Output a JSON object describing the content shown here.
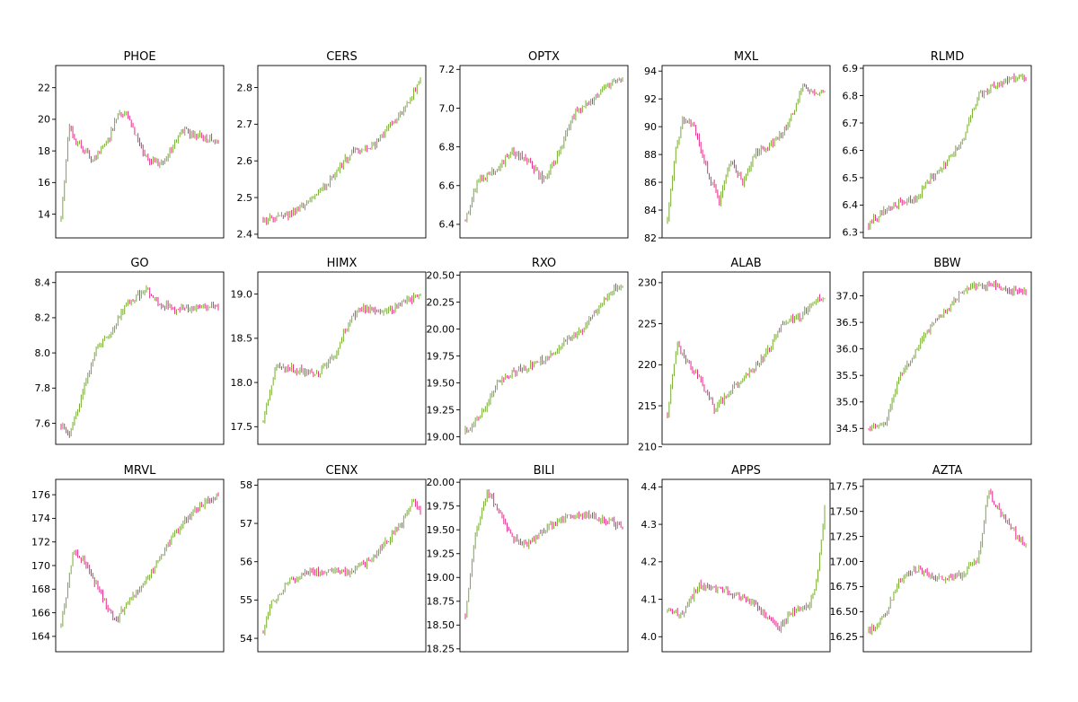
{
  "figure": {
    "colors": {
      "up": "#77ac30",
      "down": "#e7298a",
      "axis": "#000000"
    }
  },
  "chart_data": [
    {
      "type": "candlestick",
      "title": "PHOE",
      "yticks": [
        14,
        16,
        18,
        20,
        22
      ],
      "ylim": [
        12.5,
        23.4
      ],
      "trend": [
        [
          0,
          13.7
        ],
        [
          0.05,
          19.6
        ],
        [
          0.1,
          18.5
        ],
        [
          0.2,
          17.5
        ],
        [
          0.3,
          18.6
        ],
        [
          0.36,
          20.4
        ],
        [
          0.42,
          20.3
        ],
        [
          0.5,
          18.4
        ],
        [
          0.56,
          17.4
        ],
        [
          0.63,
          17.2
        ],
        [
          0.7,
          18.0
        ],
        [
          0.77,
          19.4
        ],
        [
          0.85,
          19.0
        ],
        [
          0.92,
          18.8
        ],
        [
          1.0,
          18.6
        ]
      ]
    },
    {
      "type": "candlestick",
      "title": "CERS",
      "yticks": [
        2.4,
        2.5,
        2.6,
        2.7,
        2.8
      ],
      "ylim": [
        2.39,
        2.86
      ],
      "trend": [
        [
          0,
          2.44
        ],
        [
          0.15,
          2.45
        ],
        [
          0.3,
          2.49
        ],
        [
          0.45,
          2.56
        ],
        [
          0.55,
          2.62
        ],
        [
          0.7,
          2.64
        ],
        [
          0.8,
          2.69
        ],
        [
          0.9,
          2.74
        ],
        [
          0.96,
          2.79
        ],
        [
          1.0,
          2.83
        ]
      ]
    },
    {
      "type": "candlestick",
      "title": "OPTX",
      "yticks": [
        6.4,
        6.6,
        6.8,
        7.0,
        7.2
      ],
      "ylim": [
        6.33,
        7.22
      ],
      "trend": [
        [
          0,
          6.42
        ],
        [
          0.08,
          6.62
        ],
        [
          0.2,
          6.68
        ],
        [
          0.3,
          6.78
        ],
        [
          0.4,
          6.72
        ],
        [
          0.5,
          6.63
        ],
        [
          0.6,
          6.78
        ],
        [
          0.7,
          6.98
        ],
        [
          0.8,
          7.04
        ],
        [
          0.9,
          7.12
        ],
        [
          1.0,
          7.15
        ]
      ]
    },
    {
      "type": "candlestick",
      "title": "MXL",
      "yticks": [
        82,
        84,
        86,
        88,
        90,
        92,
        94
      ],
      "ylim": [
        82,
        94.4
      ],
      "trend": [
        [
          0,
          83.2
        ],
        [
          0.05,
          88.4
        ],
        [
          0.1,
          90.6
        ],
        [
          0.17,
          90.1
        ],
        [
          0.25,
          86.9
        ],
        [
          0.33,
          84.6
        ],
        [
          0.4,
          87.6
        ],
        [
          0.48,
          85.9
        ],
        [
          0.56,
          88.2
        ],
        [
          0.64,
          88.6
        ],
        [
          0.72,
          89.3
        ],
        [
          0.8,
          91.0
        ],
        [
          0.86,
          92.9
        ],
        [
          0.93,
          92.4
        ],
        [
          1.0,
          92.6
        ]
      ]
    },
    {
      "type": "candlestick",
      "title": "RLMD",
      "yticks": [
        6.3,
        6.4,
        6.5,
        6.6,
        6.7,
        6.8,
        6.9
      ],
      "ylim": [
        6.28,
        6.91
      ],
      "trend": [
        [
          0,
          6.33
        ],
        [
          0.1,
          6.38
        ],
        [
          0.2,
          6.41
        ],
        [
          0.3,
          6.42
        ],
        [
          0.4,
          6.5
        ],
        [
          0.5,
          6.56
        ],
        [
          0.6,
          6.64
        ],
        [
          0.7,
          6.8
        ],
        [
          0.8,
          6.84
        ],
        [
          0.9,
          6.86
        ],
        [
          1.0,
          6.87
        ]
      ]
    },
    {
      "type": "candlestick",
      "title": "GO",
      "yticks": [
        7.6,
        7.8,
        8.0,
        8.2,
        8.4
      ],
      "ylim": [
        7.48,
        8.46
      ],
      "trend": [
        [
          0,
          7.58
        ],
        [
          0.05,
          7.53
        ],
        [
          0.12,
          7.72
        ],
        [
          0.22,
          8.02
        ],
        [
          0.32,
          8.12
        ],
        [
          0.42,
          8.28
        ],
        [
          0.55,
          8.36
        ],
        [
          0.62,
          8.28
        ],
        [
          0.72,
          8.25
        ],
        [
          0.85,
          8.26
        ],
        [
          0.95,
          8.27
        ],
        [
          1.0,
          8.25
        ]
      ]
    },
    {
      "type": "candlestick",
      "title": "HIMX",
      "yticks": [
        17.5,
        18.0,
        18.5,
        19.0
      ],
      "ylim": [
        17.3,
        19.25
      ],
      "trend": [
        [
          0,
          17.55
        ],
        [
          0.08,
          18.2
        ],
        [
          0.2,
          18.15
        ],
        [
          0.35,
          18.1
        ],
        [
          0.45,
          18.3
        ],
        [
          0.55,
          18.7
        ],
        [
          0.63,
          18.85
        ],
        [
          0.75,
          18.8
        ],
        [
          0.85,
          18.85
        ],
        [
          1.0,
          19.0
        ]
      ]
    },
    {
      "type": "candlestick",
      "title": "RXO",
      "yticks": [
        19.0,
        19.25,
        19.5,
        19.75,
        20.0,
        20.25,
        20.5
      ],
      "ylim": [
        18.93,
        20.53
      ],
      "trend": [
        [
          0,
          19.05
        ],
        [
          0.1,
          19.2
        ],
        [
          0.2,
          19.5
        ],
        [
          0.3,
          19.6
        ],
        [
          0.45,
          19.68
        ],
        [
          0.55,
          19.76
        ],
        [
          0.65,
          19.9
        ],
        [
          0.75,
          20.0
        ],
        [
          0.85,
          20.2
        ],
        [
          0.95,
          20.38
        ],
        [
          1.0,
          20.4
        ]
      ]
    },
    {
      "type": "candlestick",
      "title": "ALAB",
      "yticks": [
        210,
        215,
        220,
        225,
        230
      ],
      "ylim": [
        210.3,
        231.3
      ],
      "trend": [
        [
          0,
          214
        ],
        [
          0.06,
          222.5
        ],
        [
          0.12,
          220.5
        ],
        [
          0.2,
          218.5
        ],
        [
          0.3,
          214.5
        ],
        [
          0.38,
          216.5
        ],
        [
          0.46,
          218
        ],
        [
          0.55,
          219.5
        ],
        [
          0.65,
          222
        ],
        [
          0.75,
          225.5
        ],
        [
          0.85,
          225.8
        ],
        [
          0.93,
          228
        ],
        [
          1.0,
          227.8
        ]
      ]
    },
    {
      "type": "candlestick",
      "title": "BBW",
      "yticks": [
        34.5,
        35.0,
        35.5,
        36.0,
        36.5,
        37.0
      ],
      "ylim": [
        34.2,
        37.45
      ],
      "trend": [
        [
          0,
          34.5
        ],
        [
          0.1,
          34.55
        ],
        [
          0.2,
          35.5
        ],
        [
          0.3,
          35.95
        ],
        [
          0.4,
          36.45
        ],
        [
          0.5,
          36.75
        ],
        [
          0.6,
          37.1
        ],
        [
          0.7,
          37.2
        ],
        [
          0.8,
          37.2
        ],
        [
          0.9,
          37.1
        ],
        [
          1.0,
          37.05
        ]
      ]
    },
    {
      "type": "candlestick",
      "title": "MRVL",
      "yticks": [
        164,
        166,
        168,
        170,
        172,
        174,
        176
      ],
      "ylim": [
        162.7,
        177.3
      ],
      "trend": [
        [
          0,
          164.8
        ],
        [
          0.08,
          171.5
        ],
        [
          0.15,
          170.2
        ],
        [
          0.22,
          168.5
        ],
        [
          0.3,
          166.2
        ],
        [
          0.35,
          165.2
        ],
        [
          0.42,
          167.0
        ],
        [
          0.5,
          168.0
        ],
        [
          0.6,
          170.0
        ],
        [
          0.7,
          172.3
        ],
        [
          0.8,
          174.0
        ],
        [
          0.9,
          175.2
        ],
        [
          1.0,
          176.0
        ]
      ]
    },
    {
      "type": "candlestick",
      "title": "CENX",
      "yticks": [
        54,
        55,
        56,
        57,
        58
      ],
      "ylim": [
        53.65,
        58.15
      ],
      "trend": [
        [
          0,
          54.2
        ],
        [
          0.05,
          54.9
        ],
        [
          0.15,
          55.4
        ],
        [
          0.25,
          55.7
        ],
        [
          0.4,
          55.75
        ],
        [
          0.55,
          55.7
        ],
        [
          0.7,
          56.1
        ],
        [
          0.8,
          56.6
        ],
        [
          0.88,
          57.0
        ],
        [
          0.95,
          57.6
        ],
        [
          1.0,
          57.3
        ]
      ]
    },
    {
      "type": "candlestick",
      "title": "BILI",
      "yticks": [
        18.25,
        18.5,
        18.75,
        19.0,
        19.25,
        19.5,
        19.75,
        20.0
      ],
      "ylim": [
        18.22,
        20.03
      ],
      "trend": [
        [
          0,
          18.6
        ],
        [
          0.06,
          19.4
        ],
        [
          0.14,
          19.9
        ],
        [
          0.2,
          19.75
        ],
        [
          0.3,
          19.4
        ],
        [
          0.4,
          19.35
        ],
        [
          0.5,
          19.5
        ],
        [
          0.6,
          19.6
        ],
        [
          0.7,
          19.65
        ],
        [
          0.8,
          19.65
        ],
        [
          0.9,
          19.6
        ],
        [
          1.0,
          19.53
        ]
      ]
    },
    {
      "type": "candlestick",
      "title": "APPS",
      "yticks": [
        4.0,
        4.1,
        4.2,
        4.3,
        4.4
      ],
      "ylim": [
        3.96,
        4.42
      ],
      "trend": [
        [
          0,
          4.07
        ],
        [
          0.1,
          4.06
        ],
        [
          0.2,
          4.14
        ],
        [
          0.3,
          4.13
        ],
        [
          0.4,
          4.12
        ],
        [
          0.5,
          4.1
        ],
        [
          0.6,
          4.07
        ],
        [
          0.7,
          4.02
        ],
        [
          0.8,
          4.07
        ],
        [
          0.9,
          4.08
        ],
        [
          0.95,
          4.15
        ],
        [
          1.0,
          4.34
        ]
      ]
    },
    {
      "type": "candlestick",
      "title": "AZTA",
      "yticks": [
        16.25,
        16.5,
        16.75,
        17.0,
        17.25,
        17.5,
        17.75
      ],
      "ylim": [
        16.1,
        17.82
      ],
      "trend": [
        [
          0,
          16.3
        ],
        [
          0.1,
          16.45
        ],
        [
          0.2,
          16.82
        ],
        [
          0.3,
          16.92
        ],
        [
          0.45,
          16.82
        ],
        [
          0.6,
          16.86
        ],
        [
          0.7,
          17.05
        ],
        [
          0.76,
          17.7
        ],
        [
          0.85,
          17.45
        ],
        [
          0.95,
          17.25
        ],
        [
          1.0,
          17.15
        ]
      ]
    }
  ]
}
